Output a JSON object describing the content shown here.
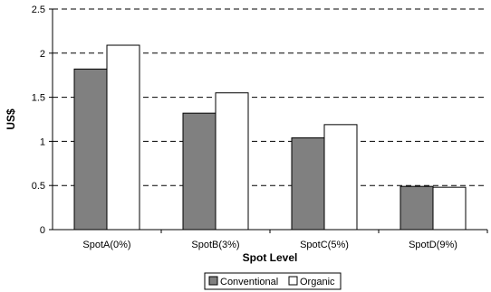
{
  "chart_data": {
    "type": "bar",
    "title": "",
    "xlabel": "Spot Level",
    "ylabel": "US$",
    "categories": [
      "SpotA(0%)",
      "SpotB(3%)",
      "SpotC(5%)",
      "SpotD(9%)"
    ],
    "series": [
      {
        "name": "Conventional",
        "values": [
          1.82,
          1.32,
          1.04,
          0.49
        ],
        "color": "#808080"
      },
      {
        "name": "Organic",
        "values": [
          2.09,
          1.55,
          1.19,
          0.48
        ],
        "color": "#ffffff"
      }
    ],
    "ylim": [
      0,
      2.5
    ],
    "yticks": [
      "0",
      "0.5",
      "1",
      "1.5",
      "2",
      "2.5"
    ],
    "grid": "horizontal dashed",
    "legend_position": "bottom-center"
  }
}
